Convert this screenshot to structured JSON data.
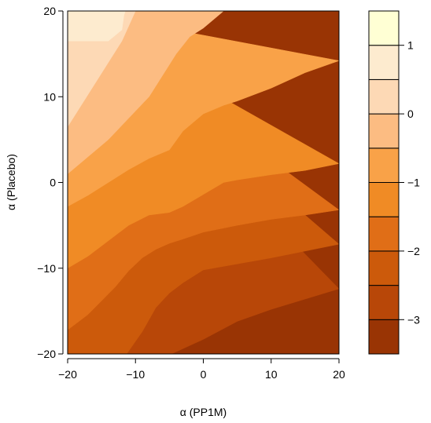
{
  "chart_data": {
    "type": "heatmap",
    "subtype": "filled-contour",
    "title": "",
    "xlabel": "α (PP1M)",
    "ylabel": "α (Placebo)",
    "xlim": [
      -20,
      20
    ],
    "ylim": [
      -20,
      20
    ],
    "x_ticks": [
      -20,
      -10,
      0,
      10,
      20
    ],
    "y_ticks": [
      -20,
      -10,
      0,
      10,
      20
    ],
    "x_tick_labels": [
      "−20",
      "−10",
      "0",
      "10",
      "20"
    ],
    "y_tick_labels": [
      "−20",
      "−10",
      "0",
      "10",
      "20"
    ],
    "legend": {
      "position": "right",
      "levels": [
        -3.5,
        -3.0,
        -2.5,
        -2.0,
        -1.5,
        -1.0,
        -0.5,
        0.0,
        0.5,
        1.0,
        1.5
      ],
      "colors": [
        "#993404",
        "#B84708",
        "#CC5A0B",
        "#E06E17",
        "#F08B25",
        "#F9A248",
        "#FCBC82",
        "#FDD9B5",
        "#FDEBCF",
        "#FFFFD4"
      ],
      "ticks": [
        -3,
        -2,
        -1,
        0,
        1
      ],
      "tick_labels": [
        "−3",
        "−2",
        "−1",
        "0",
        "1"
      ]
    },
    "grid": false,
    "contour_boundaries": [
      {
        "level": -3.0,
        "x": [
          -4.7,
          0,
          5,
          10,
          15,
          20
        ],
        "y": [
          -20,
          -18.3,
          -16.2,
          -14.8,
          -13.6,
          -12.4
        ]
      },
      {
        "level": -2.5,
        "x": [
          -11.3,
          -9,
          -7,
          -5,
          -3,
          0,
          5,
          10,
          15,
          20
        ],
        "y": [
          -20,
          -17.4,
          -14.6,
          -12.9,
          -11.7,
          -10.2,
          -9.5,
          -8.8,
          -8.0,
          -7.2
        ]
      },
      {
        "level": -2.0,
        "x": [
          -20,
          -17,
          -15,
          -13,
          -11,
          -9,
          -7,
          -5,
          -3,
          0,
          5,
          10,
          15,
          20
        ],
        "y": [
          -17.2,
          -15.4,
          -13.8,
          -12.2,
          -10.3,
          -8.8,
          -7.8,
          -7.1,
          -6.6,
          -5.8,
          -5.0,
          -4.3,
          -3.8,
          -3.2
        ]
      },
      {
        "level": -1.5,
        "x": [
          -20,
          -17,
          -14,
          -11,
          -8,
          -5,
          -3,
          0,
          3,
          5,
          10,
          15,
          20
        ],
        "y": [
          -10.0,
          -8.6,
          -6.8,
          -5.0,
          -3.8,
          -3.5,
          -2.8,
          -1.4,
          0.0,
          0.3,
          0.9,
          1.4,
          2.2
        ]
      },
      {
        "level": -1.0,
        "x": [
          -20,
          -17,
          -14,
          -11,
          -8,
          -5,
          -3,
          0,
          3,
          5,
          10,
          15,
          20
        ],
        "y": [
          -2.8,
          -1.5,
          0.0,
          1.5,
          2.8,
          3.8,
          6.0,
          8.0,
          9.0,
          9.5,
          11.0,
          12.8,
          14.2
        ]
      },
      {
        "level": -0.5,
        "x": [
          -20,
          -17,
          -14,
          -11,
          -8,
          -6,
          -4,
          -2,
          0,
          3
        ],
        "y": [
          1.0,
          3.0,
          5.0,
          7.5,
          10.0,
          12.5,
          15.0,
          17.0,
          18.0,
          20
        ]
      },
      {
        "level": 0.0,
        "x": [
          -20,
          -18,
          -16,
          -14,
          -12,
          -10
        ],
        "y": [
          6.5,
          9.0,
          11.5,
          14.0,
          16.5,
          20
        ]
      },
      {
        "level": 0.5,
        "x": [
          -14,
          -12,
          -11.7,
          -11.5
        ],
        "y": [
          16.5,
          17.8,
          19.5,
          20
        ]
      }
    ]
  }
}
